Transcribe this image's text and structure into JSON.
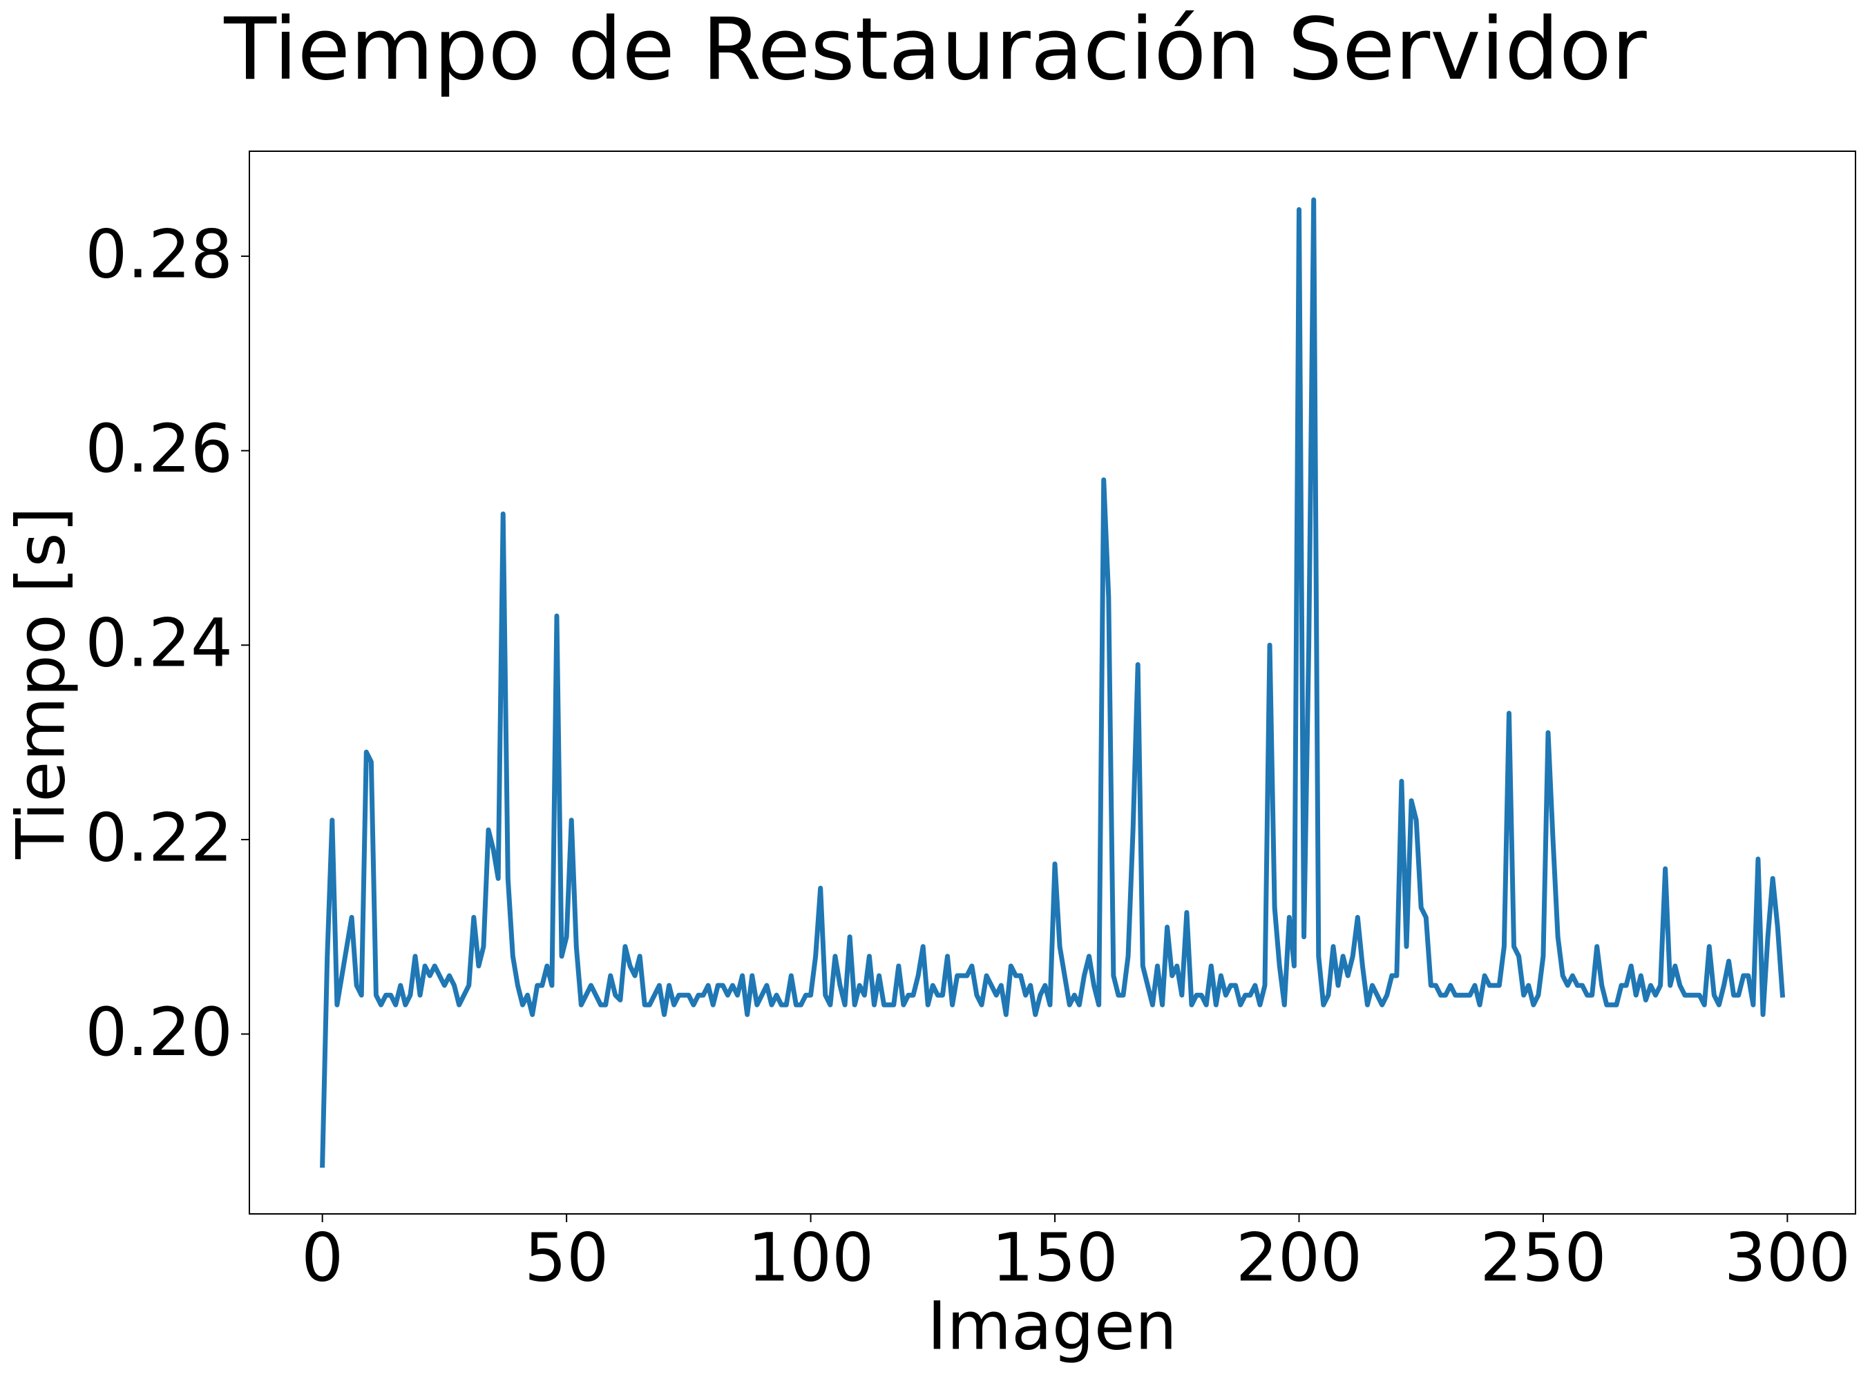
{
  "chart_data": {
    "type": "line",
    "title": "Tiempo de Restauración Servidor",
    "xlabel": "Imagen",
    "ylabel": "Tiempo [s]",
    "color": "#1f77b4",
    "grid": false,
    "xlim": [
      -14.95,
      313.95
    ],
    "ylim": [
      0.1815,
      0.2908
    ],
    "xticks": [
      0,
      50,
      100,
      150,
      200,
      250,
      300
    ],
    "yticks": [
      {
        "value": 0.2,
        "label": "0.20"
      },
      0.22,
      0.24,
      0.26,
      0.28
    ],
    "x": [
      0,
      1,
      2,
      3,
      4,
      5,
      6,
      7,
      8,
      9,
      10,
      11,
      12,
      13,
      14,
      15,
      16,
      17,
      18,
      19,
      20,
      21,
      22,
      23,
      24,
      25,
      26,
      27,
      28,
      29,
      30,
      31,
      32,
      33,
      34,
      35,
      36,
      37,
      38,
      39,
      40,
      41,
      42,
      43,
      44,
      45,
      46,
      47,
      48,
      49,
      50,
      51,
      52,
      53,
      54,
      55,
      56,
      57,
      58,
      59,
      60,
      61,
      62,
      63,
      64,
      65,
      66,
      67,
      68,
      69,
      70,
      71,
      72,
      73,
      74,
      75,
      76,
      77,
      78,
      79,
      80,
      81,
      82,
      83,
      84,
      85,
      86,
      87,
      88,
      89,
      90,
      91,
      92,
      93,
      94,
      95,
      96,
      97,
      98,
      99,
      100,
      101,
      102,
      103,
      104,
      105,
      106,
      107,
      108,
      109,
      110,
      111,
      112,
      113,
      114,
      115,
      116,
      117,
      118,
      119,
      120,
      121,
      122,
      123,
      124,
      125,
      126,
      127,
      128,
      129,
      130,
      131,
      132,
      133,
      134,
      135,
      136,
      137,
      138,
      139,
      140,
      141,
      142,
      143,
      144,
      145,
      146,
      147,
      148,
      149,
      150,
      151,
      152,
      153,
      154,
      155,
      156,
      157,
      158,
      159,
      160,
      161,
      162,
      163,
      164,
      165,
      166,
      167,
      168,
      169,
      170,
      171,
      172,
      173,
      174,
      175,
      176,
      177,
      178,
      179,
      180,
      181,
      182,
      183,
      184,
      185,
      186,
      187,
      188,
      189,
      190,
      191,
      192,
      193,
      194,
      195,
      196,
      197,
      198,
      199,
      200,
      201,
      202,
      203,
      204,
      205,
      206,
      207,
      208,
      209,
      210,
      211,
      212,
      213,
      214,
      215,
      216,
      217,
      218,
      219,
      220,
      221,
      222,
      223,
      224,
      225,
      226,
      227,
      228,
      229,
      230,
      231,
      232,
      233,
      234,
      235,
      236,
      237,
      238,
      239,
      240,
      241,
      242,
      243,
      244,
      245,
      246,
      247,
      248,
      249,
      250,
      251,
      252,
      253,
      254,
      255,
      256,
      257,
      258,
      259,
      260,
      261,
      262,
      263,
      264,
      265,
      266,
      267,
      268,
      269,
      270,
      271,
      272,
      273,
      274,
      275,
      276,
      277,
      278,
      279,
      280,
      281,
      282,
      283,
      284,
      285,
      286,
      287,
      288,
      289,
      290,
      291,
      292,
      293,
      294,
      295,
      296,
      297,
      298,
      299
    ],
    "values": [
      0.1865,
      0.208,
      0.222,
      0.203,
      0.206,
      0.209,
      0.212,
      0.205,
      0.204,
      0.229,
      0.228,
      0.204,
      0.203,
      0.204,
      0.204,
      0.203,
      0.205,
      0.203,
      0.204,
      0.208,
      0.204,
      0.207,
      0.206,
      0.207,
      0.206,
      0.205,
      0.206,
      0.205,
      0.203,
      0.204,
      0.205,
      0.212,
      0.207,
      0.209,
      0.221,
      0.219,
      0.216,
      0.2535,
      0.216,
      0.208,
      0.205,
      0.203,
      0.204,
      0.202,
      0.205,
      0.205,
      0.207,
      0.205,
      0.243,
      0.208,
      0.21,
      0.222,
      0.209,
      0.203,
      0.204,
      0.205,
      0.204,
      0.203,
      0.203,
      0.206,
      0.204,
      0.2035,
      0.209,
      0.207,
      0.206,
      0.208,
      0.203,
      0.203,
      0.204,
      0.205,
      0.202,
      0.205,
      0.203,
      0.204,
      0.204,
      0.204,
      0.203,
      0.204,
      0.204,
      0.205,
      0.203,
      0.205,
      0.205,
      0.204,
      0.205,
      0.204,
      0.206,
      0.202,
      0.206,
      0.203,
      0.204,
      0.205,
      0.203,
      0.204,
      0.203,
      0.203,
      0.206,
      0.203,
      0.203,
      0.204,
      0.204,
      0.208,
      0.215,
      0.204,
      0.203,
      0.208,
      0.205,
      0.203,
      0.21,
      0.203,
      0.205,
      0.204,
      0.208,
      0.203,
      0.206,
      0.203,
      0.203,
      0.203,
      0.207,
      0.203,
      0.204,
      0.204,
      0.206,
      0.209,
      0.203,
      0.205,
      0.204,
      0.204,
      0.208,
      0.203,
      0.206,
      0.206,
      0.206,
      0.207,
      0.204,
      0.203,
      0.206,
      0.205,
      0.204,
      0.205,
      0.202,
      0.207,
      0.206,
      0.206,
      0.204,
      0.205,
      0.202,
      0.204,
      0.205,
      0.203,
      0.2175,
      0.209,
      0.206,
      0.203,
      0.204,
      0.203,
      0.206,
      0.208,
      0.205,
      0.203,
      0.257,
      0.245,
      0.206,
      0.204,
      0.204,
      0.208,
      0.221,
      0.238,
      0.207,
      0.205,
      0.203,
      0.207,
      0.203,
      0.211,
      0.206,
      0.207,
      0.204,
      0.2125,
      0.203,
      0.204,
      0.204,
      0.203,
      0.207,
      0.203,
      0.206,
      0.204,
      0.205,
      0.205,
      0.203,
      0.204,
      0.204,
      0.205,
      0.203,
      0.205,
      0.24,
      0.213,
      0.207,
      0.203,
      0.212,
      0.207,
      0.2848,
      0.21,
      0.24,
      0.2858,
      0.208,
      0.203,
      0.204,
      0.209,
      0.205,
      0.208,
      0.206,
      0.208,
      0.212,
      0.207,
      0.203,
      0.205,
      0.204,
      0.203,
      0.204,
      0.206,
      0.206,
      0.226,
      0.209,
      0.224,
      0.222,
      0.213,
      0.212,
      0.205,
      0.205,
      0.204,
      0.204,
      0.205,
      0.204,
      0.204,
      0.204,
      0.204,
      0.205,
      0.203,
      0.206,
      0.205,
      0.205,
      0.205,
      0.209,
      0.233,
      0.209,
      0.208,
      0.204,
      0.205,
      0.203,
      0.204,
      0.208,
      0.231,
      0.22,
      0.21,
      0.206,
      0.205,
      0.206,
      0.205,
      0.205,
      0.204,
      0.204,
      0.209,
      0.205,
      0.203,
      0.203,
      0.203,
      0.205,
      0.205,
      0.207,
      0.204,
      0.206,
      0.2035,
      0.205,
      0.204,
      0.205,
      0.217,
      0.205,
      0.207,
      0.205,
      0.204,
      0.204,
      0.204,
      0.204,
      0.203,
      0.209,
      0.204,
      0.203,
      0.205,
      0.2075,
      0.204,
      0.204,
      0.206,
      0.206,
      0.203,
      0.218,
      0.202,
      0.21,
      0.216,
      0.211,
      0.204
    ]
  }
}
